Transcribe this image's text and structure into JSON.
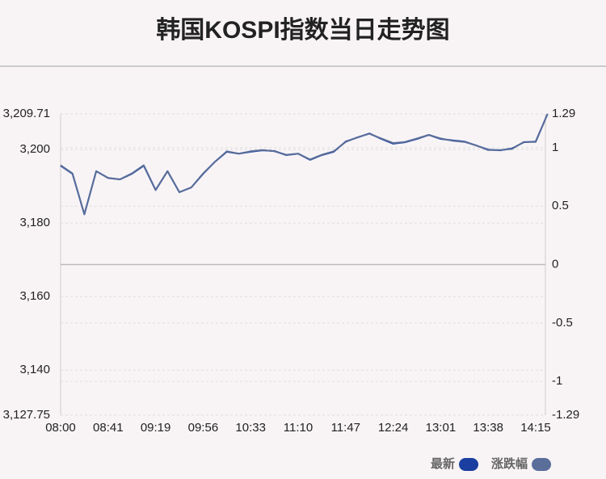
{
  "chart_data": {
    "type": "line",
    "title": "韩国KOSPI指数当日走势图",
    "categories": [
      "08:00",
      null,
      null,
      null,
      "08:41",
      null,
      null,
      null,
      "09:19",
      null,
      null,
      null,
      "09:56",
      null,
      null,
      null,
      "10:33",
      null,
      null,
      null,
      "11:10",
      null,
      null,
      null,
      "11:47",
      null,
      null,
      null,
      "12:24",
      null,
      null,
      null,
      "13:01",
      null,
      null,
      null,
      "13:38",
      null,
      null,
      null,
      "14:15",
      null
    ],
    "series": [
      {
        "name": "最新",
        "color": "#1a3fa0",
        "values": [
          3195.6,
          3193.4,
          3182.4,
          3194.1,
          3192.3,
          3191.9,
          3193.4,
          3195.6,
          3189.0,
          3194.1,
          3188.4,
          3189.7,
          3193.4,
          3196.7,
          3199.4,
          3198.9,
          3199.4,
          3199.8,
          3199.6,
          3198.5,
          3198.9,
          3197.2,
          3198.5,
          3199.4,
          3202.2,
          3203.3,
          3204.4,
          3202.9,
          3201.6,
          3202.0,
          3202.9,
          3204.0,
          3202.9,
          3202.5,
          3202.2,
          3201.1,
          3200.0,
          3199.8,
          3200.3,
          3202.0,
          3202.2,
          3209.71
        ]
      },
      {
        "name": "涨跌幅",
        "color": "#5a6e9a",
        "axis": "y2",
        "values": [
          0.85,
          0.78,
          0.43,
          0.8,
          0.74,
          0.73,
          0.78,
          0.85,
          0.64,
          0.8,
          0.62,
          0.66,
          0.78,
          0.88,
          0.97,
          0.95,
          0.97,
          0.98,
          0.97,
          0.94,
          0.95,
          0.9,
          0.94,
          0.97,
          1.05,
          1.09,
          1.12,
          1.08,
          1.04,
          1.05,
          1.08,
          1.11,
          1.08,
          1.06,
          1.05,
          1.02,
          0.98,
          0.98,
          0.99,
          1.05,
          1.05,
          1.29
        ]
      }
    ],
    "ylim": [
      3127.75,
      3209.71
    ],
    "yticks": [
      {
        "value": 3127.75,
        "label": "3,127.75"
      },
      {
        "value": 3140,
        "label": "3,140"
      },
      {
        "value": 3160,
        "label": "3,160"
      },
      {
        "value": 3180,
        "label": "3,180"
      },
      {
        "value": 3200,
        "label": "3,200"
      },
      {
        "value": 3209.71,
        "label": "3,209.71"
      }
    ],
    "y2lim": [
      -1.29,
      1.29
    ],
    "y2ticks": [
      -1.29,
      -1,
      -0.5,
      0,
      0.5,
      1,
      1.29
    ],
    "grid": true
  }
}
